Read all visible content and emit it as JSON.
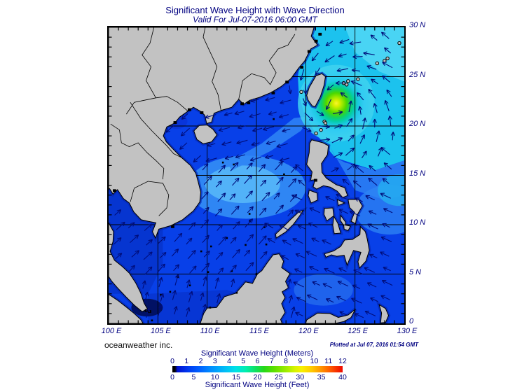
{
  "title": "Significant Wave Height with Wave Direction",
  "subtitle": "Valid For Jul-07-2016 06:00 GMT",
  "credit": "oceanweather inc.",
  "plotted_note": "Plotted at Jul 07, 2016 01:54 GMT",
  "axes": {
    "lon_ticks": [
      "100 E",
      "105 E",
      "110 E",
      "115 E",
      "120 E",
      "125 E",
      "130 E"
    ],
    "lat_ticks": [
      "0",
      "5 N",
      "10 N",
      "15 N",
      "20 N",
      "25 N",
      "30 N"
    ]
  },
  "colorbar": {
    "meters_label": "Significant Wave Height (Meters)",
    "feet_label": "Significant Wave Height (Feet)",
    "meters_ticks": [
      "0",
      "1",
      "2",
      "3",
      "4",
      "5",
      "6",
      "7",
      "8",
      "9",
      "10",
      "11",
      "12"
    ],
    "feet_ticks": [
      "0",
      "5",
      "10",
      "15",
      "20",
      "25",
      "30",
      "35",
      "40"
    ],
    "gradient_stops": [
      "#000000 0%",
      "#000000 1.5%",
      "#0010d0 3%",
      "#0038f0 9%",
      "#0060ff 16%",
      "#0090ff 23%",
      "#00b8f8 30%",
      "#00e0e8 37%",
      "#00eeb0 43%",
      "#10e060 49%",
      "#28d818 54%",
      "#60e000 60%",
      "#a0ec00 67%",
      "#d8f400 72%",
      "#f8f000 76%",
      "#ffc800 82%",
      "#ff9800 87%",
      "#ff5800 93%",
      "#ee0800 100%"
    ]
  },
  "colors": {
    "text_navy": "#000080",
    "land_gray": "#c2c2c2",
    "ocean_base": "#0840e8",
    "ocean_dark": "#0630c6",
    "ocean_light": "#2f86f4",
    "ocean_lighter": "#52b2f8",
    "sea_cyan": "#1cc2ee",
    "sea_cyan_light": "#4fd6f4",
    "arrow_navy": "#000d7a"
  },
  "chart_data": {
    "type": "heatmap",
    "title": "Significant Wave Height with Wave Direction",
    "valid_time": "Jul-07-2016 06:00 GMT",
    "region": {
      "lon_min_e": 100,
      "lon_max_e": 130,
      "lat_min_n": 0,
      "lat_max_n": 30
    },
    "grid_interval_deg": 5,
    "colorbar_meters_range": [
      0,
      12
    ],
    "colorbar_feet_range": [
      0,
      40
    ],
    "wave_height_maximum": {
      "approx_lon_e": 123,
      "approx_lat_n": 22.3,
      "approx_height_m": 6,
      "location": "east of Taiwan"
    },
    "arrow_meaning": "wave direction"
  }
}
